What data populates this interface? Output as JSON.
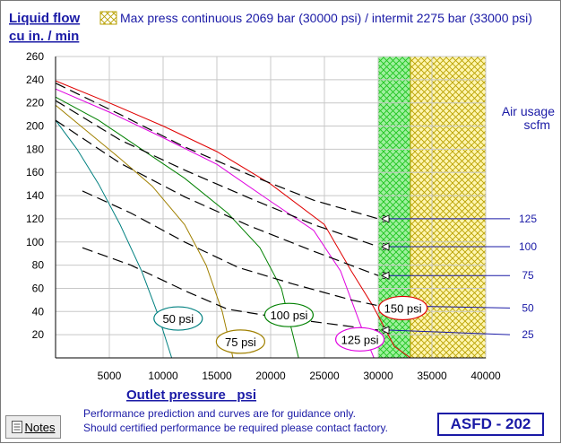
{
  "chart_data": {
    "type": "line",
    "title": "Max press continuous 2069 bar (30000 psi) / intermit 2275 bar (33000 psi)",
    "ylabel_line1": "Liquid flow",
    "ylabel_line2": "cu in. / min",
    "xlabel": "Outlet pressure   psi",
    "air_label_line1": "Air usage",
    "air_label_line2": "scfm",
    "xlim": [
      0,
      40000
    ],
    "ylim": [
      0,
      260
    ],
    "x_ticks": [
      5000,
      10000,
      15000,
      20000,
      25000,
      30000,
      35000,
      40000
    ],
    "y_ticks": [
      20,
      40,
      60,
      80,
      100,
      120,
      140,
      160,
      180,
      200,
      220,
      240,
      260
    ],
    "grid": true,
    "continuous_zone": [
      30000,
      33000
    ],
    "intermittent_zone": [
      33000,
      40000
    ],
    "pressure_series": [
      {
        "name": "50 psi",
        "color": "#008080",
        "points": [
          [
            0,
            205
          ],
          [
            2000,
            180
          ],
          [
            4000,
            150
          ],
          [
            6000,
            115
          ],
          [
            8000,
            75
          ],
          [
            9500,
            38
          ],
          [
            10800,
            0
          ]
        ]
      },
      {
        "name": "75 psi",
        "color": "#a08000",
        "points": [
          [
            0,
            218
          ],
          [
            3000,
            195
          ],
          [
            6000,
            172
          ],
          [
            9000,
            148
          ],
          [
            12000,
            115
          ],
          [
            14000,
            80
          ],
          [
            15500,
            40
          ],
          [
            16500,
            0
          ]
        ]
      },
      {
        "name": "100 psi",
        "color": "#008000",
        "points": [
          [
            0,
            225
          ],
          [
            4000,
            205
          ],
          [
            8000,
            180
          ],
          [
            12000,
            155
          ],
          [
            16000,
            125
          ],
          [
            19000,
            95
          ],
          [
            21000,
            60
          ],
          [
            22600,
            0
          ]
        ]
      },
      {
        "name": "125 psi",
        "color": "#e000e0",
        "points": [
          [
            0,
            232
          ],
          [
            5000,
            212
          ],
          [
            10000,
            190
          ],
          [
            15000,
            167
          ],
          [
            20000,
            135
          ],
          [
            24000,
            110
          ],
          [
            26500,
            75
          ],
          [
            28500,
            25
          ],
          [
            29600,
            0
          ]
        ]
      },
      {
        "name": "150 psi",
        "color": "#e00000",
        "points": [
          [
            0,
            239
          ],
          [
            5000,
            220
          ],
          [
            10000,
            200
          ],
          [
            15000,
            178
          ],
          [
            20000,
            150
          ],
          [
            25000,
            115
          ],
          [
            27500,
            75
          ],
          [
            29500,
            45
          ],
          [
            31500,
            10
          ],
          [
            33000,
            0
          ]
        ]
      }
    ],
    "air_series": [
      {
        "name": "125",
        "points": [
          [
            0,
            237
          ],
          [
            6000,
            210
          ],
          [
            12000,
            182
          ],
          [
            18000,
            158
          ],
          [
            24000,
            136
          ],
          [
            30000,
            120
          ]
        ],
        "leader_end_y": 120
      },
      {
        "name": "100",
        "points": [
          [
            0,
            222
          ],
          [
            6000,
            188
          ],
          [
            12000,
            162
          ],
          [
            18000,
            138
          ],
          [
            24000,
            115
          ],
          [
            30000,
            96
          ]
        ],
        "leader_end_y": 96
      },
      {
        "name": "75",
        "points": [
          [
            0,
            205
          ],
          [
            6000,
            168
          ],
          [
            12000,
            139
          ],
          [
            18000,
            114
          ],
          [
            24000,
            92
          ],
          [
            30000,
            71
          ]
        ],
        "leader_end_y": 71
      },
      {
        "name": "50",
        "points": [
          [
            2500,
            144
          ],
          [
            7000,
            125
          ],
          [
            12000,
            100
          ],
          [
            17000,
            78
          ],
          [
            22000,
            64
          ],
          [
            27500,
            50
          ],
          [
            30000,
            45
          ]
        ],
        "leader_end_y": 43
      },
      {
        "name": "25",
        "points": [
          [
            2500,
            95
          ],
          [
            7000,
            80
          ],
          [
            12000,
            58
          ],
          [
            16000,
            42
          ],
          [
            20000,
            36
          ],
          [
            25000,
            30
          ],
          [
            30000,
            24
          ]
        ],
        "leader_end_y": 20
      }
    ]
  },
  "notes_label": "Notes",
  "footer_line1": "Performance prediction and curves are for guidance only.",
  "footer_line2": "Should certified performance be required please contact factory.",
  "model_id": "ASFD - 202"
}
